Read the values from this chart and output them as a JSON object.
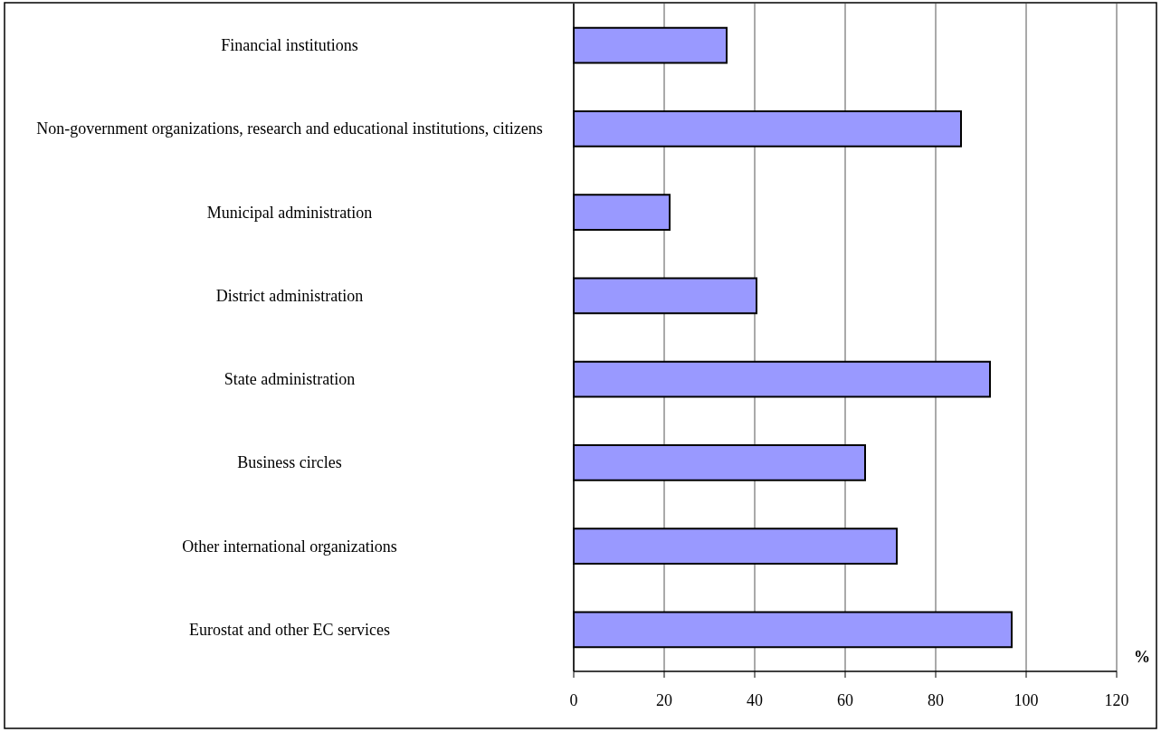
{
  "chart_data": {
    "type": "bar",
    "orientation": "horizontal",
    "xlabel": "%",
    "categories": [
      "Financial institutions",
      "Non-government organizations, research and educational institutions, citizens",
      "Municipal administration",
      "District administration",
      "State administration",
      "Business circles",
      "Other international organizations",
      "Eurostat and other EC services"
    ],
    "values": [
      33.8,
      85.6,
      21.2,
      40.4,
      92,
      64.4,
      71.4,
      96.8
    ],
    "color": "#9999ff",
    "xlim": [
      0,
      120
    ],
    "xticks": [
      0,
      20,
      40,
      60,
      80,
      100,
      120
    ],
    "grid": "x"
  }
}
